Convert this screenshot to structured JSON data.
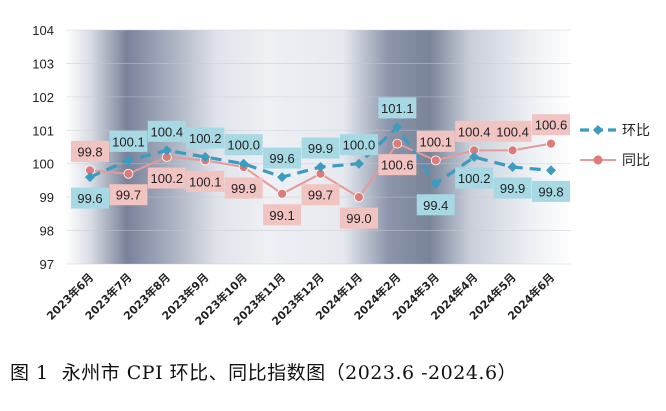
{
  "caption": "图 1  永州市 CPI 环比、同比指数图（2023.6 -2024.6）",
  "chart_data": {
    "type": "line",
    "categories": [
      "2023年6月",
      "2023年7月",
      "2023年8月",
      "2023年9月",
      "2023年10月",
      "2023年11月",
      "2023年12月",
      "2024年1月",
      "2024年2月",
      "2024年3月",
      "2024年4月",
      "2024年5月",
      "2024年6月"
    ],
    "ylim": [
      97,
      104
    ],
    "yticks": [
      97,
      98,
      99,
      100,
      101,
      102,
      103,
      104
    ],
    "legend_position": "right",
    "series": [
      {
        "name": "环比",
        "color": "#3a9cc0",
        "label_bg": "#a7d9e4",
        "values": [
          99.6,
          100.1,
          100.4,
          100.2,
          100.0,
          99.6,
          99.9,
          100.0,
          101.1,
          99.4,
          100.2,
          99.9,
          99.8
        ],
        "labels": [
          "99.6",
          "100.1",
          "100.4",
          "100.2",
          "100.0",
          "99.6",
          "99.9",
          "100.0",
          "101.1",
          "99.4",
          "100.2",
          "99.9",
          "99.8"
        ]
      },
      {
        "name": "同比",
        "color": "#e39a98",
        "label_bg": "#f2c4c1",
        "values": [
          99.8,
          99.7,
          100.2,
          100.1,
          99.9,
          99.1,
          99.7,
          99.0,
          100.6,
          100.1,
          100.4,
          100.4,
          100.6
        ],
        "labels": [
          "99.8",
          "99.7",
          "100.2",
          "100.1",
          "99.9",
          "99.1",
          "99.7",
          "99.0",
          "100.6",
          "100.1",
          "100.4",
          "100.4",
          "100.6"
        ]
      }
    ]
  }
}
